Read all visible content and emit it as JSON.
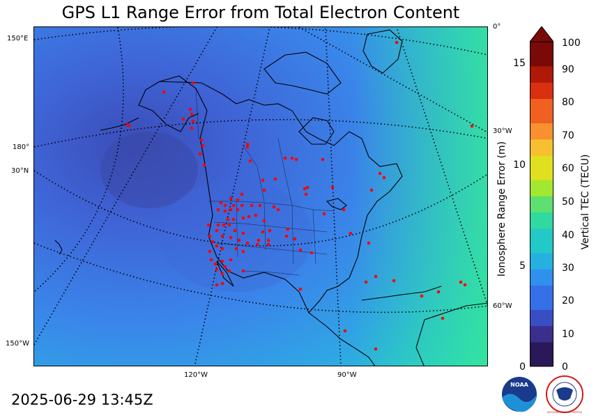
{
  "title": "GPS L1 Range Error from Total Electron Content",
  "timestamp": "2025-06-29 13:45Z",
  "map": {
    "grid_labels": {
      "lon_150e": "150°E",
      "lon_180": "180°",
      "lat_30n": "30°N",
      "lon_150w": "150°W",
      "lon_120w": "120°W",
      "lon_90w": "90°W",
      "lon_0": "0°",
      "lon_30w": "30°W",
      "lon_60w": "60°W"
    },
    "station_color": "#ff0000",
    "background_color": "#3a6fe0"
  },
  "range_axis": {
    "label": "Ionosphere Range Error (m)",
    "ticks": [
      "15",
      "10",
      "5",
      "0"
    ]
  },
  "colorbar": {
    "label": "Vertical TEC (TECU)",
    "ticks": [
      "100",
      "90",
      "80",
      "70",
      "60",
      "50",
      "40",
      "30",
      "20",
      "10",
      "0"
    ],
    "colors": [
      "#2a1858",
      "#3a2f8c",
      "#3a4ec4",
      "#3570e8",
      "#2f90ee",
      "#26b0e0",
      "#22c9c6",
      "#2fd9a0",
      "#5de070",
      "#a3e830",
      "#e0e020",
      "#f7c030",
      "#f89030",
      "#f06020",
      "#d83010",
      "#b01808",
      "#7a0a08"
    ]
  },
  "logos": {
    "noaa": "NOAA",
    "nws": "NATIONAL WEATHER SERVICE"
  }
}
